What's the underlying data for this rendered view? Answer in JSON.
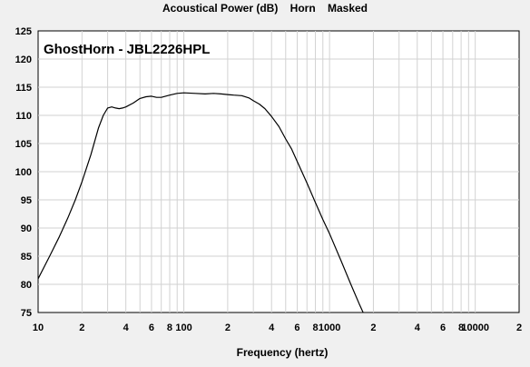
{
  "chart_data": {
    "type": "line",
    "title": "Acoustical Power (dB)    Horn    Masked",
    "annotation": "GhostHorn - JBL2226HPL",
    "xlabel": "Frequency (hertz)",
    "ylabel": "",
    "x_scale": "log",
    "xlim": [
      10,
      20000
    ],
    "ylim": [
      75,
      125
    ],
    "y_ticks": [
      125,
      120,
      115,
      110,
      105,
      100,
      95,
      90,
      85,
      80,
      75
    ],
    "x_ticks": [
      {
        "value": 10,
        "label": "10"
      },
      {
        "value": 20,
        "label": "2"
      },
      {
        "value": 40,
        "label": "4"
      },
      {
        "value": 60,
        "label": "6"
      },
      {
        "value": 80,
        "label": "8"
      },
      {
        "value": 100,
        "label": "100"
      },
      {
        "value": 200,
        "label": "2"
      },
      {
        "value": 400,
        "label": "4"
      },
      {
        "value": 600,
        "label": "6"
      },
      {
        "value": 800,
        "label": "8"
      },
      {
        "value": 1000,
        "label": "1000"
      },
      {
        "value": 2000,
        "label": "2"
      },
      {
        "value": 4000,
        "label": "4"
      },
      {
        "value": 6000,
        "label": "6"
      },
      {
        "value": 8000,
        "label": "8"
      },
      {
        "value": 10000,
        "label": "10000"
      },
      {
        "value": 20000,
        "label": "2"
      }
    ],
    "grid": true,
    "series": [
      {
        "color": "#000000",
        "x": [
          10,
          12,
          14,
          16,
          18,
          20,
          23,
          26,
          28,
          30,
          32,
          34,
          36,
          38,
          40,
          45,
          50,
          55,
          60,
          65,
          70,
          80,
          90,
          100,
          120,
          140,
          160,
          180,
          200,
          220,
          250,
          280,
          300,
          330,
          360,
          400,
          450,
          500,
          550,
          600,
          700,
          800,
          900,
          1000,
          1200,
          1400,
          1600,
          1800,
          2000
        ],
        "y": [
          81.0,
          85.0,
          88.5,
          91.8,
          95.0,
          98.2,
          103.0,
          107.8,
          110.0,
          111.3,
          111.5,
          111.3,
          111.2,
          111.3,
          111.5,
          112.2,
          113.0,
          113.3,
          113.4,
          113.2,
          113.2,
          113.6,
          113.9,
          114.0,
          113.9,
          113.8,
          113.9,
          113.8,
          113.7,
          113.6,
          113.5,
          113.1,
          112.6,
          112.0,
          111.2,
          109.8,
          108.0,
          105.8,
          104.0,
          101.8,
          98.0,
          94.5,
          91.5,
          89.0,
          84.2,
          80.0,
          76.5,
          73.6,
          71.2
        ]
      }
    ]
  }
}
